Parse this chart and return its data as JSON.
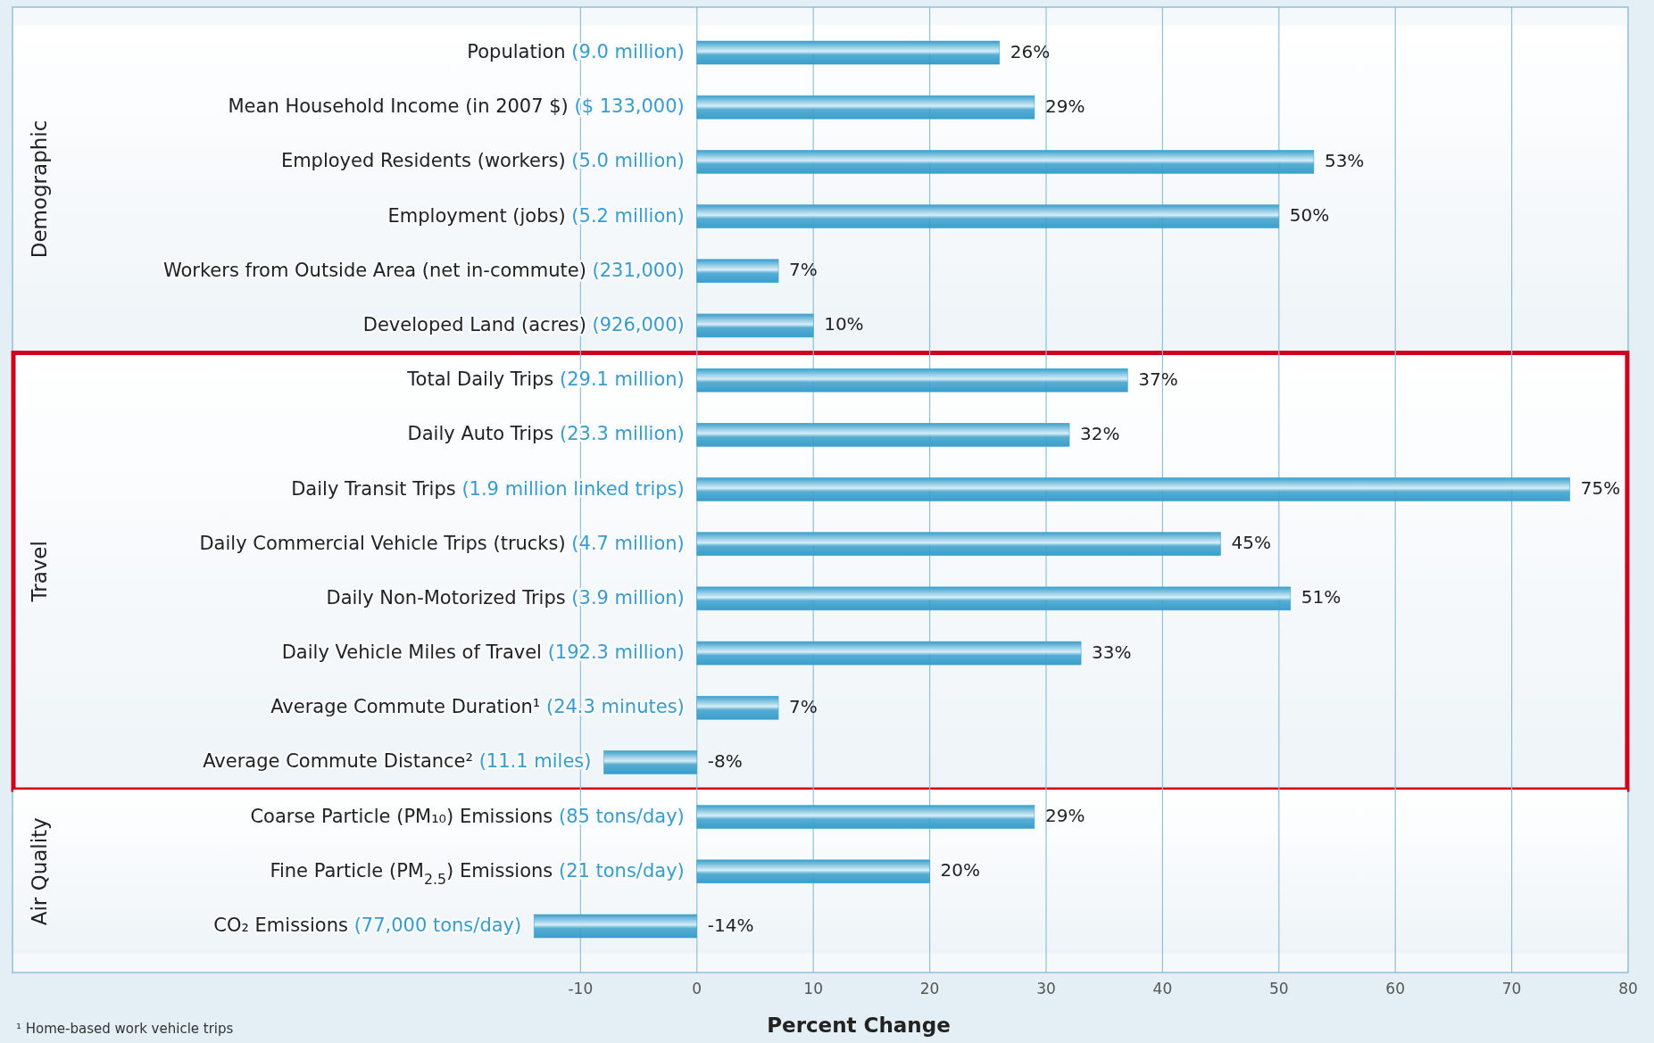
{
  "chart_data": {
    "type": "bar",
    "orientation": "horizontal",
    "xlabel": "Percent Change",
    "categories": [
      "Population (9.0 million)",
      "Mean Household Income (in 2007 $) ($ 133,000)",
      "Employed Residents (workers) (5.0 million)",
      "Employment (jobs) (5.2 million)",
      "Workers from Outside Area (net in-commute) (231,000)",
      "Developed Land (acres) (926,000)",
      "Total Daily Trips (29.1 million)",
      "Daily Auto Trips (23.3 million)",
      "Daily Transit Trips (1.9 million linked trips)",
      "Daily Commercial Vehicle Trips (trucks) (4.7 million)",
      "Daily Non-Motorized Trips (3.9 million)",
      "Daily Vehicle Miles of Travel (192.3 million)",
      "Average Commute Duration¹ (24.3 minutes)",
      "Average Commute Distance² (11.1 miles)",
      "Coarse Particle (PM₁₀) Emissions (85 tons/day)",
      "Fine Particle (PM$_{2.5}$) Emissions (21 tons/day)",
      "CO₂ Emissions (77,000 tons/day)"
    ],
    "values": [
      26,
      29,
      53,
      50,
      7,
      10,
      37,
      32,
      75,
      45,
      51,
      33,
      7,
      -8,
      29,
      20,
      -14
    ],
    "value_labels": [
      "26%",
      "29%",
      "53%",
      "50%",
      "7%",
      "10%",
      "37%",
      "32%",
      "75%",
      "45%",
      "51%",
      "33%",
      "7%",
      "-8%",
      "29%",
      "20%",
      "-14%"
    ],
    "color": "#3a9fcb",
    "xlim": [
      -58.8,
      80
    ],
    "xticks": [
      -10,
      0,
      10,
      20,
      30,
      40,
      50,
      60,
      70,
      80
    ],
    "grid": "x",
    "bands": [
      {
        "axis": "y",
        "from": "Population (9.0 million)",
        "to": "Developed Land (acres) (926,000)",
        "label": "Demographic"
      },
      {
        "axis": "y",
        "from": "Total Daily Trips (29.1 million)",
        "to": "Average Commute Distance² (11.1 miles)",
        "label": "Travel",
        "color": "#d0021b"
      },
      {
        "axis": "y",
        "from": "Coarse Particle (PM₁₀) Emissions (85 tons/day)",
        "to": "CO₂ Emissions (77,000 tons/day)",
        "label": "Air Quality"
      }
    ],
    "annotations": [
      "¹ Home-based work vehicle trips"
    ]
  }
}
